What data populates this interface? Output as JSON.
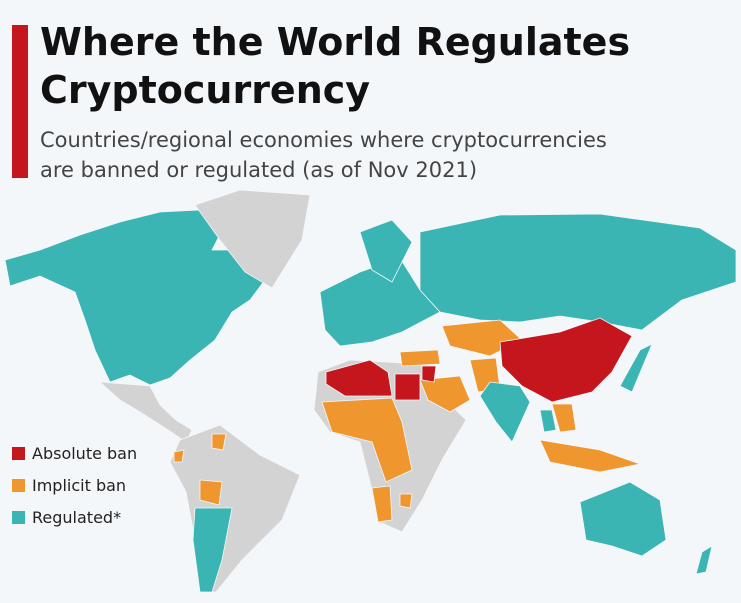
{
  "header": {
    "title": [
      "Where the World Regulates",
      "Cryptocurrency"
    ],
    "subtitle": [
      "Countries/regional economies where cryptocurrencies",
      "are banned or regulated (as of Nov 2021)"
    ]
  },
  "legend": {
    "items": [
      {
        "label": "Absolute ban",
        "color": "#c4161c"
      },
      {
        "label": "Implicit ban",
        "color": "#f0962e"
      },
      {
        "label": "Regulated*",
        "color": "#3bb4b4"
      }
    ]
  }
}
